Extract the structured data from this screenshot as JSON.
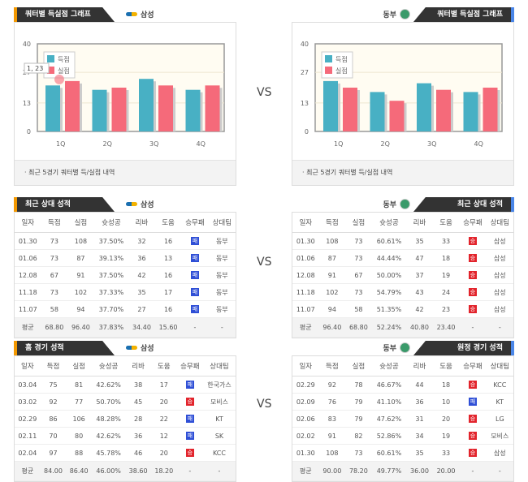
{
  "vs_label": "VS",
  "left_team": "삼성",
  "right_team": "동부",
  "colors": {
    "scored": "#48b0c4",
    "allowed": "#f56a7a"
  },
  "chart_note": "· 최근 5경기 쿼터별 득/실점 내역",
  "headers": [
    "일자",
    "득점",
    "실점",
    "슛성공",
    "리바",
    "도움",
    "승무패",
    "상대팀"
  ],
  "chart_data": [
    {
      "type": "bar",
      "title": "쿼터별 득실점 그래프",
      "team": "삼성",
      "categories": [
        "1Q",
        "2Q",
        "3Q",
        "4Q"
      ],
      "series": [
        {
          "name": "득점",
          "values": [
            21,
            19,
            24,
            19
          ]
        },
        {
          "name": "실점",
          "values": [
            23,
            20,
            21,
            21
          ]
        }
      ],
      "yticks": [
        "0",
        "13",
        "27",
        "40"
      ],
      "ylim": [
        0,
        40
      ],
      "tooltip": "1, 23",
      "legend": "top-left"
    },
    {
      "type": "bar",
      "title": "쿼터별 득실점 그래프",
      "team": "동부",
      "categories": [
        "1Q",
        "2Q",
        "3Q",
        "4Q"
      ],
      "series": [
        {
          "name": "득점",
          "values": [
            23,
            18,
            22,
            18
          ]
        },
        {
          "name": "실점",
          "values": [
            20,
            14,
            19,
            20
          ]
        }
      ],
      "yticks": [
        "0",
        "13",
        "27",
        "40"
      ],
      "ylim": [
        0,
        40
      ],
      "legend": "top-left"
    }
  ],
  "tables": [
    {
      "title": "최근 상대 성적",
      "team": "삼성",
      "rows": [
        [
          "01.30",
          "73",
          "108",
          "37.50%",
          "32",
          "16",
          "패",
          "동부"
        ],
        [
          "01.06",
          "73",
          "87",
          "39.13%",
          "36",
          "13",
          "패",
          "동부"
        ],
        [
          "12.08",
          "67",
          "91",
          "37.50%",
          "42",
          "16",
          "패",
          "동부"
        ],
        [
          "11.18",
          "73",
          "102",
          "37.33%",
          "35",
          "17",
          "패",
          "동부"
        ],
        [
          "11.07",
          "58",
          "94",
          "37.70%",
          "27",
          "16",
          "패",
          "동부"
        ]
      ],
      "avg": [
        "평균",
        "68.80",
        "96.40",
        "37.83%",
        "34.40",
        "15.60",
        "-",
        "-"
      ]
    },
    {
      "title": "최근 상대 성적",
      "team": "동부",
      "rows": [
        [
          "01.30",
          "108",
          "73",
          "60.61%",
          "35",
          "33",
          "승",
          "삼성"
        ],
        [
          "01.06",
          "87",
          "73",
          "44.44%",
          "47",
          "18",
          "승",
          "삼성"
        ],
        [
          "12.08",
          "91",
          "67",
          "50.00%",
          "37",
          "19",
          "승",
          "삼성"
        ],
        [
          "11.18",
          "102",
          "73",
          "54.79%",
          "43",
          "24",
          "승",
          "삼성"
        ],
        [
          "11.07",
          "94",
          "58",
          "51.35%",
          "42",
          "23",
          "승",
          "삼성"
        ]
      ],
      "avg": [
        "평균",
        "96.40",
        "68.80",
        "52.24%",
        "40.80",
        "23.40",
        "-",
        "-"
      ]
    },
    {
      "title": "홈 경기 성적",
      "team": "삼성",
      "rows": [
        [
          "03.04",
          "75",
          "81",
          "42.62%",
          "38",
          "17",
          "패",
          "한국가스"
        ],
        [
          "03.02",
          "92",
          "77",
          "50.70%",
          "45",
          "20",
          "승",
          "모비스"
        ],
        [
          "02.29",
          "86",
          "106",
          "48.28%",
          "28",
          "22",
          "패",
          "KT"
        ],
        [
          "02.11",
          "70",
          "80",
          "42.62%",
          "36",
          "12",
          "패",
          "SK"
        ],
        [
          "02.04",
          "97",
          "88",
          "45.78%",
          "46",
          "20",
          "승",
          "KCC"
        ]
      ],
      "avg": [
        "평균",
        "84.00",
        "86.40",
        "46.00%",
        "38.60",
        "18.20",
        "-",
        "-"
      ]
    },
    {
      "title": "원정 경기 성적",
      "team": "동부",
      "rows": [
        [
          "02.29",
          "92",
          "78",
          "46.67%",
          "44",
          "18",
          "승",
          "KCC"
        ],
        [
          "02.09",
          "76",
          "79",
          "41.10%",
          "36",
          "10",
          "패",
          "KT"
        ],
        [
          "02.06",
          "83",
          "79",
          "47.62%",
          "31",
          "20",
          "승",
          "LG"
        ],
        [
          "02.02",
          "91",
          "82",
          "52.86%",
          "34",
          "19",
          "승",
          "모비스"
        ],
        [
          "01.30",
          "108",
          "73",
          "60.61%",
          "35",
          "33",
          "승",
          "삼성"
        ]
      ],
      "avg": [
        "평균",
        "90.00",
        "78.20",
        "49.77%",
        "36.00",
        "20.00",
        "-",
        "-"
      ]
    }
  ]
}
